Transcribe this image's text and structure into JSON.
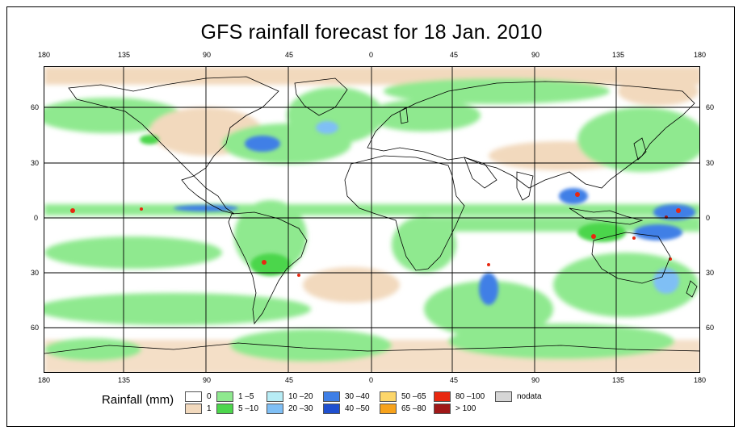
{
  "title": "GFS rainfall forecast for 18 Jan. 2010",
  "lon_ticks": [
    "180",
    "135",
    "90",
    "45",
    "0",
    "45",
    "90",
    "135",
    "180"
  ],
  "lat_ticks": [
    "60",
    "30",
    "0",
    "30",
    "60"
  ],
  "legend": {
    "title": "Rainfall (mm)",
    "items": [
      {
        "label": "0",
        "color": "#ffffff"
      },
      {
        "label": "1",
        "color": "#f2d9bd"
      },
      {
        "label": "1 –5",
        "color": "#8fe98f"
      },
      {
        "label": "5 –10",
        "color": "#4cd64c"
      },
      {
        "label": "10 –20",
        "color": "#b7ecf5"
      },
      {
        "label": "20 –30",
        "color": "#7fbff5"
      },
      {
        "label": "30 –40",
        "color": "#3f7fe6"
      },
      {
        "label": "40 –50",
        "color": "#1f4fcf"
      },
      {
        "label": "50 –65",
        "color": "#fcd66a"
      },
      {
        "label": "65 –80",
        "color": "#f7a21b"
      },
      {
        "label": "80 –100",
        "color": "#e82810"
      },
      {
        "label": "> 100",
        "color": "#a01818"
      },
      {
        "label": "nodata",
        "color": "#d6d6d6"
      }
    ]
  }
}
